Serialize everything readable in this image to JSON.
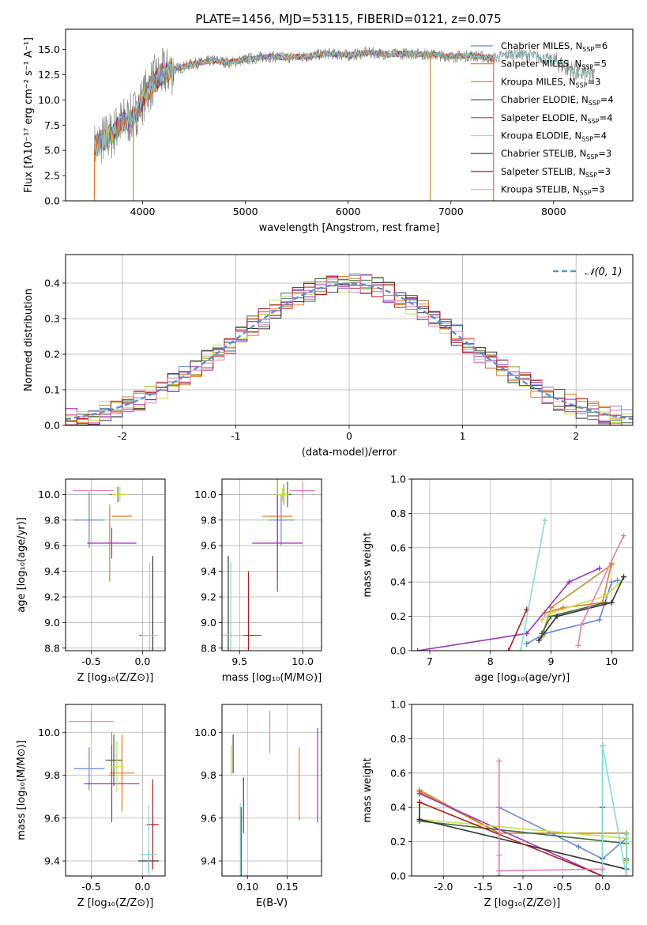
{
  "colors": [
    "#6688dd",
    "#e07b22",
    "#c98a2a",
    "#3a6b3a",
    "#9a33bb",
    "#c5e04a",
    "#333333",
    "#b21a1a",
    "#84dcd2",
    "#e87fb4",
    "#888888"
  ],
  "spectrum_title": "PLATE=1456, MJD=53115, FIBERID=0121, z=0.075",
  "chart_data": [
    {
      "id": "spectrum",
      "type": "line",
      "title": "PLATE=1456, MJD=53115, FIBERID=0121, z=0.075",
      "xlabel": "wavelength [Angstrom, rest frame]",
      "ylabel": "Flux [fλ10⁻¹⁷ erg cm⁻² s⁻¹ A⁻¹]",
      "xlim": [
        3250,
        8770
      ],
      "ylim": [
        0,
        17
      ],
      "xticks": [
        4000,
        5000,
        6000,
        7000,
        8000
      ],
      "yticks": [
        0.0,
        2.5,
        5.0,
        7.5,
        10.0,
        12.5,
        15.0
      ],
      "grid": false,
      "legend_position": "right",
      "data_x": [
        3530,
        3600,
        3700,
        3800,
        3900,
        4000,
        4100,
        4200,
        4300,
        4500,
        4700,
        4850,
        5000,
        5200,
        5400,
        5600,
        5800,
        6000,
        6200,
        6400,
        6600,
        6800,
        7000,
        7200,
        7400,
        7600,
        7800,
        8000,
        8200,
        8400
      ],
      "data_y": [
        5.2,
        6.0,
        6.5,
        7.8,
        8.2,
        10.0,
        11.8,
        12.6,
        13.0,
        13.6,
        13.9,
        13.7,
        14.0,
        14.3,
        14.2,
        14.3,
        14.6,
        14.4,
        14.7,
        14.5,
        14.6,
        14.5,
        14.3,
        14.4,
        14.1,
        14.6,
        14.4,
        13.9,
        12.8,
        12.4
      ],
      "series": [
        {
          "name": "Chabrier MILES, N_SSP=6",
          "label": "Chabrier MILES, N",
          "sub": "SSP",
          "suffix": "=6"
        },
        {
          "name": "Salpeter MILES, N_SSP=5",
          "label": "Salpeter MILES, N",
          "sub": "SSP",
          "suffix": "=5"
        },
        {
          "name": "Kroupa MILES, N_SSP=3",
          "label": "Kroupa MILES, N",
          "sub": "SSP",
          "suffix": "=3"
        },
        {
          "name": "Chabrier ELODIE, N_SSP=4",
          "label": "Chabrier ELODIE, N",
          "sub": "SSP",
          "suffix": "=4"
        },
        {
          "name": "Salpeter ELODIE, N_SSP=4",
          "label": "Salpeter ELODIE, N",
          "sub": "SSP",
          "suffix": "=4"
        },
        {
          "name": "Kroupa ELODIE, N_SSP=4",
          "label": "Kroupa ELODIE, N",
          "sub": "SSP",
          "suffix": "=4"
        },
        {
          "name": "Chabrier STELIB, N_SSP=3",
          "label": "Chabrier STELIB, N",
          "sub": "SSP",
          "suffix": "=3"
        },
        {
          "name": "Salpeter STELIB, N_SSP=3",
          "label": "Salpeter STELIB, N",
          "sub": "SSP",
          "suffix": "=3"
        },
        {
          "name": "Kroupa STELIB, N_SSP=3",
          "label": "Kroupa STELIB, N",
          "sub": "SSP",
          "suffix": "=3"
        }
      ]
    },
    {
      "id": "residuals",
      "type": "line",
      "xlabel": "(data-model)/error",
      "ylabel": "Normed distribution",
      "xlim": [
        -2.5,
        2.5
      ],
      "ylim": [
        0,
        0.48
      ],
      "xticks": [
        -2,
        -1,
        0,
        1,
        2
      ],
      "yticks": [
        0.0,
        0.1,
        0.2,
        0.3,
        0.4
      ],
      "grid": true,
      "legend_position": "top-right",
      "legend_label": "𝒩(0, 1)",
      "normal_curve": {
        "mean": 0,
        "sigma": 1
      }
    },
    {
      "id": "age-vs-Z",
      "type": "scatter",
      "xlabel": "Z [log₁₀(Z/Z⊙)]",
      "ylabel": "age  [log₁₀(age/yr)]",
      "xlim": [
        -0.75,
        0.22
      ],
      "ylim": [
        8.78,
        10.12
      ],
      "xticks": [
        -0.5,
        0.0
      ],
      "yticks": [
        8.8,
        9.0,
        9.2,
        9.4,
        9.6,
        9.8,
        10.0
      ],
      "grid": true,
      "points": [
        {
          "x": -0.52,
          "y": 9.8,
          "xerr": 0.15,
          "yerr": 0.22
        },
        {
          "x": -0.2,
          "y": 9.83,
          "xerr": 0.1,
          "yerr": 0.0
        },
        {
          "x": -0.32,
          "y": 9.62,
          "xerr": 0.0,
          "yerr": 0.3
        },
        {
          "x": -0.24,
          "y": 10.0,
          "xerr": 0.08,
          "yerr": 0.06
        },
        {
          "x": -0.3,
          "y": 9.62,
          "xerr": 0.24,
          "yerr": 0.12
        },
        {
          "x": -0.22,
          "y": 10.0,
          "xerr": 0.08,
          "yerr": 0.06
        },
        {
          "x": 0.1,
          "y": 8.9,
          "xerr": 0.0,
          "yerr": 0.62
        },
        {
          "x": 0.05,
          "y": 8.9,
          "xerr": 0.08,
          "yerr": 0.0
        },
        {
          "x": 0.07,
          "y": 8.9,
          "xerr": 0.08,
          "yerr": 0.57
        },
        {
          "x": -0.48,
          "y": 10.03,
          "xerr": 0.2,
          "yerr": 0.0
        }
      ]
    },
    {
      "id": "age-vs-mass",
      "type": "scatter",
      "xlabel": "mass [log₁₀(M/M⊙)]",
      "ylabel": "",
      "xlim": [
        9.36,
        10.15
      ],
      "ylim": [
        8.78,
        10.12
      ],
      "xticks": [
        9.5,
        10.0
      ],
      "yticks": [
        8.8,
        9.0,
        9.2,
        9.4,
        9.6,
        9.8,
        10.0
      ],
      "grid": true,
      "points": [
        {
          "x": 9.83,
          "y": 9.8,
          "xerr": 0.1,
          "yerr": 0.2
        },
        {
          "x": 9.8,
          "y": 9.83,
          "xerr": 0.12,
          "yerr": 0.5
        },
        {
          "x": 9.85,
          "y": 10.0,
          "xerr": 0.06,
          "yerr": 0.08
        },
        {
          "x": 9.88,
          "y": 10.0,
          "xerr": 0.03,
          "yerr": 0.1
        },
        {
          "x": 9.8,
          "y": 9.62,
          "xerr": 0.2,
          "yerr": 0.38
        },
        {
          "x": 9.84,
          "y": 10.0,
          "xerr": 0.05,
          "yerr": 0.05
        },
        {
          "x": 9.41,
          "y": 8.9,
          "xerr": 0.03,
          "yerr": 0.62
        },
        {
          "x": 9.57,
          "y": 8.9,
          "xerr": 0.1,
          "yerr": 0.5
        },
        {
          "x": 9.43,
          "y": 8.9,
          "xerr": 0.1,
          "yerr": 0.57
        },
        {
          "x": 10.0,
          "y": 10.03,
          "xerr": 0.1,
          "yerr": 0.06
        }
      ]
    },
    {
      "id": "mass-weight-vs-age",
      "type": "line",
      "xlabel": "age  [log₁₀(age/yr)]",
      "ylabel": "mass weight",
      "xlim": [
        6.7,
        10.35
      ],
      "ylim": [
        0,
        1.0
      ],
      "xticks": [
        7,
        8,
        9,
        10
      ],
      "yticks": [
        0.0,
        0.2,
        0.4,
        0.6,
        0.8,
        1.0
      ],
      "grid": true,
      "series": [
        {
          "name": "Chabrier MILES",
          "x": [
            8.6,
            8.9,
            9.8,
            10.0,
            10.1
          ],
          "y": [
            0.04,
            0.1,
            0.18,
            0.4,
            0.41
          ]
        },
        {
          "name": "Salpeter MILES",
          "x": [
            8.9,
            9.2,
            9.85,
            10.0
          ],
          "y": [
            0.22,
            0.25,
            0.28,
            0.51
          ]
        },
        {
          "name": "Kroupa MILES",
          "x": [
            8.85,
            9.0,
            10.0
          ],
          "y": [
            0.08,
            0.25,
            0.5
          ]
        },
        {
          "name": "Chabrier ELODIE",
          "x": [
            8.85,
            9.0,
            9.9
          ],
          "y": [
            0.1,
            0.2,
            0.28
          ]
        },
        {
          "name": "Salpeter ELODIE",
          "x": [
            6.8,
            8.6,
            9.3,
            9.8
          ],
          "y": [
            0.0,
            0.1,
            0.4,
            0.48
          ]
        },
        {
          "name": "Kroupa ELODIE",
          "x": [
            8.85,
            9.0,
            9.9,
            10.15
          ],
          "y": [
            0.18,
            0.22,
            0.32,
            0.4
          ]
        },
        {
          "name": "Chabrier STELIB",
          "x": [
            8.8,
            9.1,
            10.0,
            10.2
          ],
          "y": [
            0.06,
            0.2,
            0.28,
            0.43
          ]
        },
        {
          "name": "Salpeter STELIB",
          "x": [
            8.3,
            8.6
          ],
          "y": [
            0.0,
            0.24
          ]
        },
        {
          "name": "Kroupa STELIB",
          "x": [
            8.5,
            8.9
          ],
          "y": [
            0.0,
            0.76
          ]
        },
        {
          "name": "Pink",
          "x": [
            9.45,
            9.5,
            10.2
          ],
          "y": [
            0.03,
            0.15,
            0.67
          ]
        }
      ]
    },
    {
      "id": "mass-vs-Z",
      "type": "scatter",
      "xlabel": "Z [log₁₀(Z/Z⊙)]",
      "ylabel": "mass [log₁₀(M/M⊙)]",
      "xlim": [
        -0.75,
        0.22
      ],
      "ylim": [
        9.33,
        10.13
      ],
      "xticks": [
        -0.5,
        0.0
      ],
      "yticks": [
        9.4,
        9.6,
        9.8,
        10.0
      ],
      "grid": true,
      "points": [
        {
          "x": -0.52,
          "y": 9.83,
          "xerr": 0.15,
          "yerr": 0.1
        },
        {
          "x": -0.2,
          "y": 9.81,
          "xerr": 0.12,
          "yerr": 0.18
        },
        {
          "x": -0.3,
          "y": 9.8,
          "xerr": 0.03,
          "yerr": 0.2
        },
        {
          "x": -0.28,
          "y": 9.87,
          "xerr": 0.08,
          "yerr": 0.12
        },
        {
          "x": -0.3,
          "y": 9.76,
          "xerr": 0.27,
          "yerr": 0.18
        },
        {
          "x": -0.25,
          "y": 9.84,
          "xerr": 0.07,
          "yerr": 0.12
        },
        {
          "x": 0.06,
          "y": 9.4,
          "xerr": 0.1,
          "yerr": 0.05
        },
        {
          "x": 0.1,
          "y": 9.57,
          "xerr": 0.06,
          "yerr": 0.21
        },
        {
          "x": 0.06,
          "y": 9.43,
          "xerr": 0.08,
          "yerr": 0.23
        },
        {
          "x": -0.5,
          "y": 10.05,
          "xerr": 0.22,
          "yerr": 0.05
        }
      ]
    },
    {
      "id": "mass-vs-EBV",
      "type": "scatter",
      "xlabel": "E(B-V)",
      "ylabel": "",
      "xlim": [
        0.068,
        0.193
      ],
      "ylim": [
        9.33,
        10.13
      ],
      "xticks": [
        0.1,
        0.15
      ],
      "yticks": [
        9.4,
        9.6,
        9.8,
        10.0
      ],
      "grid": true,
      "points": [
        {
          "x": 0.082,
          "y": 9.9,
          "xerr": 0.0,
          "yerr": 0.09
        },
        {
          "x": 0.165,
          "y": 9.76,
          "xerr": 0.0,
          "yerr": 0.17
        },
        {
          "x": 0.08,
          "y": 9.87,
          "xerr": 0.0,
          "yerr": 0.07
        },
        {
          "x": 0.082,
          "y": 9.9,
          "xerr": 0.0,
          "yerr": 0.09
        },
        {
          "x": 0.188,
          "y": 9.8,
          "xerr": 0.0,
          "yerr": 0.22
        },
        {
          "x": 0.08,
          "y": 9.87,
          "xerr": 0.0,
          "yerr": 0.07
        },
        {
          "x": 0.092,
          "y": 9.45,
          "xerr": 0.0,
          "yerr": 0.2
        },
        {
          "x": 0.095,
          "y": 9.66,
          "xerr": 0.0,
          "yerr": 0.13
        },
        {
          "x": 0.091,
          "y": 9.5,
          "xerr": 0.0,
          "yerr": 0.17
        },
        {
          "x": 0.128,
          "y": 10.0,
          "xerr": 0.0,
          "yerr": 0.1
        }
      ]
    },
    {
      "id": "mass-weight-vs-Z",
      "type": "line",
      "xlabel": "Z [log₁₀(Z/Z⊙)]",
      "ylabel": "mass weight",
      "xlim": [
        -2.4,
        0.38
      ],
      "ylim": [
        0,
        1.0
      ],
      "xticks": [
        -2.0,
        -1.5,
        -1.0,
        -0.5,
        0.0
      ],
      "yticks": [
        0.0,
        0.2,
        0.4,
        0.6,
        0.8,
        1.0
      ],
      "grid": true,
      "series": [
        {
          "name": "Chabrier MILES",
          "x": [
            -1.3,
            -1.3,
            -0.3,
            0.0,
            0.3
          ],
          "y": [
            0.0,
            0.4,
            0.17,
            0.1,
            0.22
          ]
        },
        {
          "name": "Salpeter MILES",
          "x": [
            -2.3,
            -1.3,
            0.3
          ],
          "y": [
            0.5,
            0.25,
            0.25
          ]
        },
        {
          "name": "Kroupa MILES",
          "x": [
            -2.3,
            -1.3,
            0.3,
            0.3
          ],
          "y": [
            0.49,
            0.25,
            0.25,
            0.09
          ]
        },
        {
          "name": "Chabrier ELODIE",
          "x": [
            -2.3,
            0.3,
            0.3
          ],
          "y": [
            0.32,
            0.19,
            0.1
          ]
        },
        {
          "name": "Salpeter ELODIE",
          "x": [
            -2.3,
            0.0,
            0.0,
            0.0
          ],
          "y": [
            0.48,
            0.0,
            0.4,
            0.1
          ]
        },
        {
          "name": "Kroupa ELODIE",
          "x": [
            -2.3,
            -2.3,
            0.3,
            0.3
          ],
          "y": [
            0.4,
            0.33,
            0.22,
            0.08
          ]
        },
        {
          "name": "Chabrier STELIB",
          "x": [
            -2.3,
            -2.3,
            0.3
          ],
          "y": [
            0.43,
            0.33,
            0.04
          ]
        },
        {
          "name": "Salpeter STELIB",
          "x": [
            -2.3,
            0.0,
            0.0
          ],
          "y": [
            0.43,
            0.0,
            0.76
          ]
        },
        {
          "name": "Kroupa STELIB",
          "x": [
            0.0,
            0.0,
            0.3,
            0.3
          ],
          "y": [
            0.0,
            0.76,
            0.0,
            0.24
          ]
        },
        {
          "name": "Pink",
          "x": [
            -1.3,
            -1.3,
            -1.3,
            0.0,
            0.0
          ],
          "y": [
            0.12,
            0.67,
            0.03,
            0.04,
            0.04
          ]
        }
      ]
    }
  ]
}
